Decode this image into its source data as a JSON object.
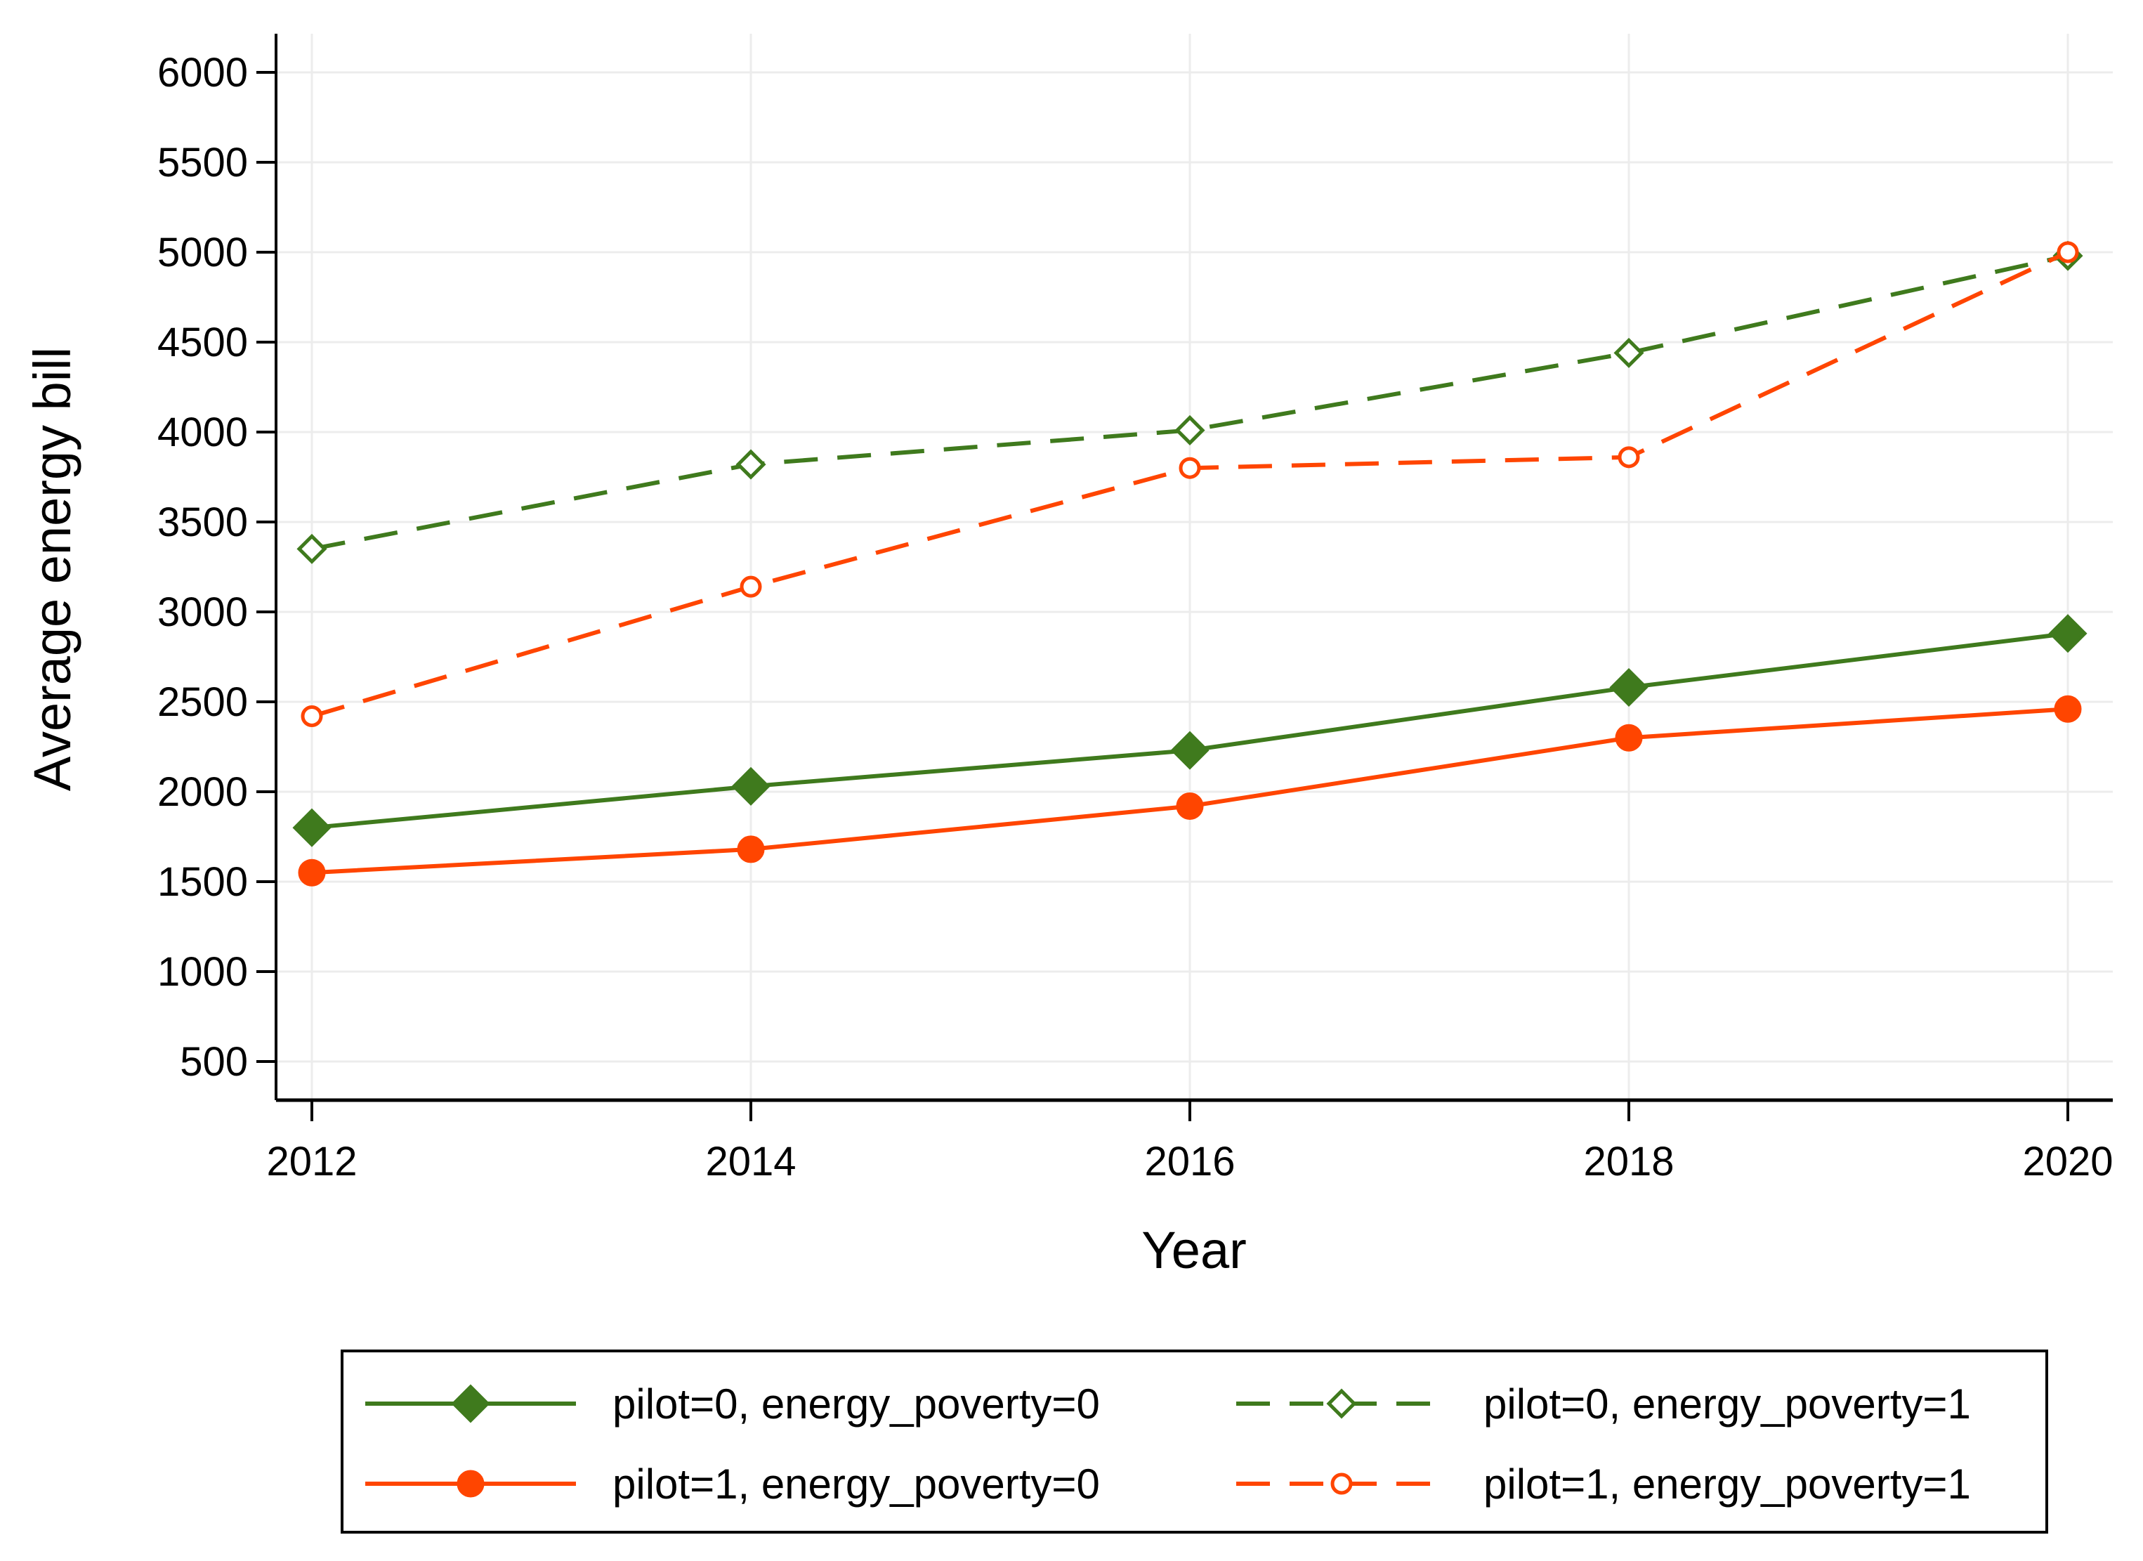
{
  "chart_data": {
    "type": "line",
    "title": "",
    "xlabel": "Year",
    "ylabel": "Average energy bill",
    "x": [
      2012,
      2014,
      2016,
      2018,
      2020
    ],
    "x_ticks": [
      "2012",
      "2014",
      "2016",
      "2018",
      "2020"
    ],
    "y_ticks": [
      "500",
      "1000",
      "1500",
      "2000",
      "2500",
      "3000",
      "3500",
      "4000",
      "4500",
      "5000",
      "5500",
      "6000"
    ],
    "ylim": [
      500,
      6000
    ],
    "grid": true,
    "legend_position": "bottom",
    "series": [
      {
        "name": "pilot=0, energy_poverty=0",
        "values": [
          1800,
          2030,
          2230,
          2580,
          2880
        ],
        "color": "#3f7a1d",
        "dash": "solid",
        "marker": "filled-diamond"
      },
      {
        "name": "pilot=0, energy_poverty=1",
        "values": [
          3350,
          3820,
          4010,
          4440,
          4980
        ],
        "color": "#3f7a1d",
        "dash": "dashed",
        "marker": "hollow-diamond"
      },
      {
        "name": "pilot=1, energy_poverty=0",
        "values": [
          1550,
          1680,
          1920,
          2300,
          2460
        ],
        "color": "#ff4500",
        "dash": "solid",
        "marker": "filled-circle"
      },
      {
        "name": "pilot=1, energy_poverty=1",
        "values": [
          2420,
          3140,
          3800,
          3860,
          5000
        ],
        "color": "#ff4500",
        "dash": "dashed",
        "marker": "hollow-circle"
      }
    ]
  }
}
